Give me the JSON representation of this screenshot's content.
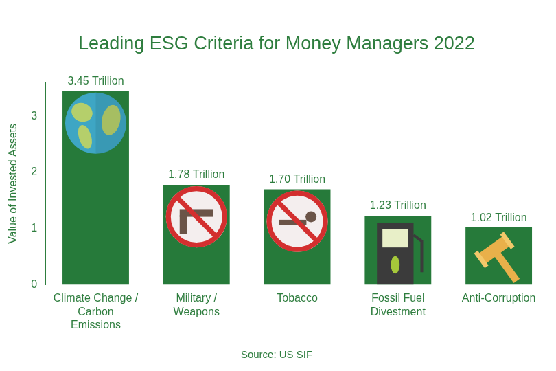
{
  "chart_data": {
    "type": "bar",
    "title": "Leading ESG Criteria for Money Managers 2022",
    "y_label": "Value of Invested Assets",
    "annotation": "Source: US SIF",
    "categories": [
      [
        "Climate Change /",
        "Carbon",
        "Emissions"
      ],
      [
        "Military /",
        "Weapons"
      ],
      "Tobacco",
      [
        "Fossil Fuel",
        "Divestment"
      ],
      "Anti-Corruption"
    ],
    "values": [
      3.45,
      1.78,
      1.7,
      1.23,
      1.02
    ],
    "value_labels": [
      "3.45 Trillion",
      "1.78 Trillion",
      "1.70 Trillion",
      "1.23 Trillion",
      "1.02 Trillion"
    ],
    "color": "#267a3a",
    "ylim": [
      0,
      3.6
    ],
    "yticks": [
      0,
      1,
      2,
      3
    ],
    "grid": false,
    "data_labels": true
  }
}
